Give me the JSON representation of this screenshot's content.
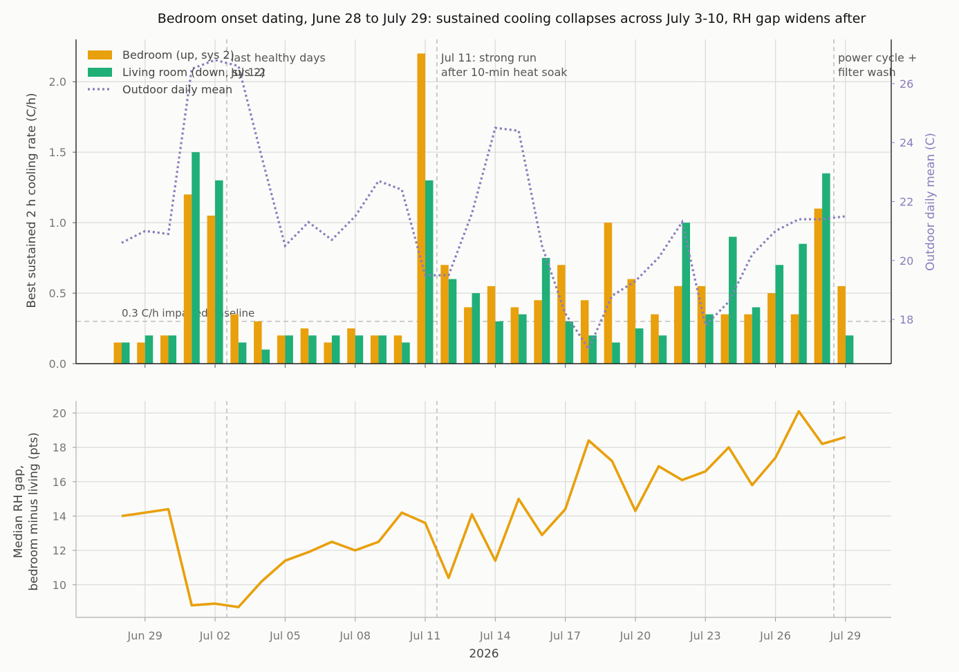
{
  "figure": {
    "title": "Bedroom onset dating, June 28 to July 29: sustained cooling collapses across July 3-10, RH gap widens after",
    "xlabel": "2026",
    "x_tick_labels": [
      "Jun 29",
      "Jul 02",
      "Jul 05",
      "Jul 08",
      "Jul 11",
      "Jul 14",
      "Jul 17",
      "Jul 20",
      "Jul 23",
      "Jul 26",
      "Jul 29"
    ],
    "colors": {
      "bedroom": "#e8a00c",
      "living": "#1faf77",
      "outdoor": "#8a7cbd",
      "baseline": "#bbbbbb",
      "event_line": "#bbbbbb"
    }
  },
  "chart_data": [
    {
      "type": "bar",
      "x": [
        "Jun 28",
        "Jun 29",
        "Jun 30",
        "Jul 01",
        "Jul 02",
        "Jul 03",
        "Jul 04",
        "Jul 05",
        "Jul 06",
        "Jul 07",
        "Jul 08",
        "Jul 09",
        "Jul 10",
        "Jul 11",
        "Jul 12",
        "Jul 13",
        "Jul 14",
        "Jul 15",
        "Jul 16",
        "Jul 17",
        "Jul 18",
        "Jul 19",
        "Jul 20",
        "Jul 21",
        "Jul 22",
        "Jul 23",
        "Jul 24",
        "Jul 25",
        "Jul 26",
        "Jul 27",
        "Jul 28",
        "Jul 29"
      ],
      "series": [
        {
          "name": "Bedroom (up, sys 2)",
          "values": [
            0.15,
            0.15,
            0.2,
            1.2,
            1.05,
            0.35,
            0.3,
            0.2,
            0.25,
            0.15,
            0.25,
            0.2,
            0.2,
            2.2,
            0.7,
            0.4,
            0.55,
            0.4,
            0.45,
            0.7,
            0.45,
            1.0,
            0.6,
            0.35,
            0.55,
            0.55,
            0.35,
            0.35,
            0.5,
            0.35,
            1.1,
            0.55
          ]
        },
        {
          "name": "Living room (down, sys 2)",
          "values": [
            0.15,
            0.2,
            0.2,
            1.5,
            1.3,
            0.15,
            0.1,
            0.2,
            0.2,
            0.2,
            0.2,
            0.2,
            0.15,
            1.3,
            0.6,
            0.5,
            0.3,
            0.35,
            0.75,
            0.3,
            0.2,
            0.15,
            0.25,
            0.2,
            1.0,
            0.35,
            0.9,
            0.4,
            0.7,
            0.85,
            1.35,
            0.2
          ]
        },
        {
          "name": "Outdoor daily mean",
          "type": "line",
          "axis": "right",
          "values": [
            20.6,
            21.0,
            20.9,
            26.5,
            26.8,
            26.6,
            23.5,
            20.5,
            21.3,
            20.7,
            21.5,
            22.7,
            22.4,
            19.5,
            19.5,
            21.6,
            24.5,
            24.4,
            20.5,
            18.2,
            17.0,
            18.8,
            19.3,
            20.1,
            21.3,
            17.8,
            18.6,
            20.2,
            21.0,
            21.4,
            21.4,
            21.5
          ]
        }
      ],
      "ylabel": "Best sustained 2 h cooling rate (C/h)",
      "ylim": [
        0,
        2.3
      ],
      "yticks": [
        "0.0",
        "0.5",
        "1.0",
        "1.5",
        "2.0"
      ],
      "y2label": "Outdoor daily mean (C)",
      "y2lim": [
        16.5,
        27.5
      ],
      "y2ticks": [
        "18",
        "20",
        "22",
        "24",
        "26"
      ],
      "baseline": {
        "value": 0.3,
        "label": "0.3 C/h impaired baseline"
      },
      "annotations": [
        {
          "x": "Jul 03",
          "lines": [
            "last healthy days",
            "Jul 1-2"
          ]
        },
        {
          "x": "Jul 12",
          "lines": [
            "Jul 11: strong run",
            "after 10-min heat soak"
          ]
        },
        {
          "x": "Jul 29",
          "lines": [
            "power cycle +",
            "filter wash"
          ]
        }
      ],
      "legend": "top-left",
      "grid": true
    },
    {
      "type": "line",
      "x": [
        "Jun 28",
        "Jun 29",
        "Jun 30",
        "Jul 01",
        "Jul 02",
        "Jul 03",
        "Jul 04",
        "Jul 05",
        "Jul 06",
        "Jul 07",
        "Jul 08",
        "Jul 09",
        "Jul 10",
        "Jul 11",
        "Jul 12",
        "Jul 13",
        "Jul 14",
        "Jul 15",
        "Jul 16",
        "Jul 17",
        "Jul 18",
        "Jul 19",
        "Jul 20",
        "Jul 21",
        "Jul 22",
        "Jul 23",
        "Jul 24",
        "Jul 25",
        "Jul 26",
        "Jul 27",
        "Jul 28",
        "Jul 29"
      ],
      "series": [
        {
          "values": [
            14.0,
            14.2,
            14.4,
            8.8,
            8.9,
            8.7,
            10.2,
            11.4,
            11.9,
            12.5,
            12.0,
            12.5,
            14.2,
            13.6,
            10.4,
            14.1,
            11.4,
            15.0,
            12.9,
            14.4,
            18.4,
            17.2,
            14.3,
            16.9,
            16.1,
            16.6,
            18.0,
            15.8,
            17.4,
            20.1,
            18.2,
            18.6
          ]
        }
      ],
      "ylabel": "Median RH gap,\nbedroom minus living (pts)",
      "ylim": [
        8.1,
        20.7
      ],
      "yticks": [
        "10",
        "12",
        "14",
        "16",
        "18",
        "20"
      ],
      "grid": true
    }
  ]
}
